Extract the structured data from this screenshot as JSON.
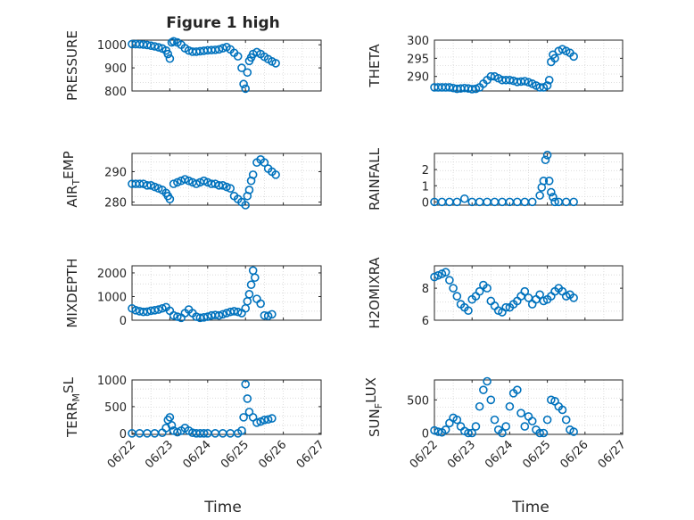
{
  "figure_title": "Figure 1 high",
  "marker_color": "#0072BD",
  "xlabel": "Time",
  "chart_data": [
    {
      "type": "scatter",
      "ylabel": "PRESSURE",
      "ylabel_parts": [
        "PRESSURE"
      ],
      "ylim": [
        800,
        1020
      ],
      "yticks": [
        800,
        900,
        1000
      ],
      "xlim": [
        0,
        5
      ],
      "xticks": [
        "06/22",
        "06/23",
        "06/24",
        "06/25",
        "06/26",
        "06/27"
      ],
      "grid": true,
      "x": [
        0,
        0.1,
        0.2,
        0.3,
        0.4,
        0.5,
        0.6,
        0.7,
        0.8,
        0.9,
        0.95,
        1.0,
        1.05,
        1.1,
        1.2,
        1.3,
        1.4,
        1.5,
        1.6,
        1.7,
        1.8,
        1.9,
        2.0,
        2.1,
        2.2,
        2.3,
        2.4,
        2.5,
        2.6,
        2.7,
        2.8,
        2.9,
        2.95,
        3.0,
        3.05,
        3.1,
        3.15,
        3.2,
        3.3,
        3.4,
        3.5,
        3.6,
        3.7,
        3.8
      ],
      "y": [
        1003,
        1003,
        1002,
        1001,
        999,
        996,
        993,
        989,
        984,
        975,
        960,
        940,
        1010,
        1015,
        1010,
        1000,
        985,
        975,
        970,
        970,
        972,
        974,
        976,
        977,
        978,
        980,
        985,
        990,
        980,
        965,
        950,
        900,
        830,
        810,
        880,
        930,
        945,
        960,
        968,
        960,
        948,
        938,
        928,
        920
      ]
    },
    {
      "type": "scatter",
      "ylabel": "THETA",
      "ylabel_parts": [
        "THETA"
      ],
      "ylim": [
        286,
        300
      ],
      "yticks": [
        290,
        295,
        300
      ],
      "xlim": [
        0,
        5
      ],
      "xticks": [
        "06/22",
        "06/23",
        "06/24",
        "06/25",
        "06/26",
        "06/27"
      ],
      "grid": true,
      "x": [
        0,
        0.1,
        0.2,
        0.3,
        0.4,
        0.5,
        0.6,
        0.7,
        0.8,
        0.9,
        1.0,
        1.1,
        1.2,
        1.3,
        1.4,
        1.5,
        1.6,
        1.7,
        1.8,
        1.9,
        2.0,
        2.1,
        2.2,
        2.3,
        2.4,
        2.5,
        2.6,
        2.7,
        2.8,
        2.9,
        3.0,
        3.05,
        3.1,
        3.15,
        3.2,
        3.3,
        3.4,
        3.5,
        3.6,
        3.7
      ],
      "y": [
        287,
        287,
        287,
        287,
        287,
        286.8,
        286.6,
        286.7,
        286.8,
        286.7,
        286.5,
        286.6,
        287,
        288,
        289,
        290,
        290,
        289.5,
        289,
        289,
        289,
        288.8,
        288.5,
        288.6,
        288.7,
        288.4,
        288,
        287.5,
        287,
        287,
        287.5,
        289,
        294,
        296,
        295,
        297,
        297.5,
        297,
        296.5,
        295.5
      ]
    },
    {
      "type": "scatter",
      "ylabel": "AIR_TEMP",
      "ylabel_parts": [
        "AIR",
        "T",
        "EMP"
      ],
      "ylim": [
        279,
        296
      ],
      "yticks": [
        280,
        290
      ],
      "xlim": [
        0,
        5
      ],
      "xticks": [
        "06/22",
        "06/23",
        "06/24",
        "06/25",
        "06/26",
        "06/27"
      ],
      "grid": true,
      "x": [
        0,
        0.1,
        0.2,
        0.3,
        0.4,
        0.5,
        0.6,
        0.7,
        0.8,
        0.9,
        0.95,
        1.0,
        1.1,
        1.2,
        1.3,
        1.4,
        1.5,
        1.6,
        1.7,
        1.8,
        1.9,
        2.0,
        2.1,
        2.2,
        2.3,
        2.4,
        2.5,
        2.6,
        2.7,
        2.8,
        2.9,
        3.0,
        3.05,
        3.1,
        3.15,
        3.2,
        3.3,
        3.4,
        3.5,
        3.6,
        3.7,
        3.8
      ],
      "y": [
        286,
        286,
        286,
        286,
        285.5,
        285.5,
        285,
        284.5,
        284,
        283,
        282,
        281,
        286,
        286.5,
        287,
        287.5,
        287,
        286.5,
        286,
        286.5,
        287,
        286.5,
        286,
        286,
        285.5,
        285.5,
        285,
        284.5,
        282,
        281,
        280,
        279,
        282,
        284,
        287,
        289,
        293,
        294,
        293,
        291,
        290,
        289
      ]
    },
    {
      "type": "scatter",
      "ylabel": "RAINFALL",
      "ylabel_parts": [
        "RAINFALL"
      ],
      "ylim": [
        -0.2,
        3
      ],
      "yticks": [
        0,
        1,
        2
      ],
      "xlim": [
        0,
        5
      ],
      "xticks": [
        "06/22",
        "06/23",
        "06/24",
        "06/25",
        "06/26",
        "06/27"
      ],
      "grid": true,
      "x": [
        0,
        0.2,
        0.4,
        0.6,
        0.8,
        1.0,
        1.2,
        1.4,
        1.6,
        1.8,
        2.0,
        2.2,
        2.4,
        2.6,
        2.8,
        2.85,
        2.9,
        2.95,
        3.0,
        3.05,
        3.1,
        3.15,
        3.2,
        3.3,
        3.5,
        3.7
      ],
      "y": [
        0,
        0,
        0,
        0,
        0.2,
        0,
        0,
        0,
        0,
        0,
        0,
        0,
        0,
        0,
        0.4,
        0.9,
        1.3,
        2.6,
        2.9,
        1.3,
        0.6,
        0.3,
        0,
        0,
        0,
        0
      ]
    },
    {
      "type": "scatter",
      "ylabel": "MIXDEPTH",
      "ylabel_parts": [
        "MIXDEPTH"
      ],
      "ylim": [
        0,
        2300
      ],
      "yticks": [
        0,
        1000,
        2000
      ],
      "xlim": [
        0,
        5
      ],
      "xticks": [
        "06/22",
        "06/23",
        "06/24",
        "06/25",
        "06/26",
        "06/27"
      ],
      "grid": true,
      "x": [
        0,
        0.1,
        0.2,
        0.3,
        0.4,
        0.5,
        0.6,
        0.7,
        0.8,
        0.9,
        1.0,
        1.1,
        1.2,
        1.3,
        1.4,
        1.5,
        1.6,
        1.7,
        1.8,
        1.9,
        2.0,
        2.1,
        2.2,
        2.3,
        2.4,
        2.5,
        2.6,
        2.7,
        2.8,
        2.9,
        3.0,
        3.05,
        3.1,
        3.15,
        3.2,
        3.25,
        3.3,
        3.4,
        3.5,
        3.6,
        3.7
      ],
      "y": [
        500,
        420,
        380,
        350,
        360,
        400,
        420,
        450,
        500,
        550,
        400,
        200,
        150,
        100,
        300,
        450,
        300,
        150,
        100,
        120,
        150,
        200,
        220,
        200,
        250,
        300,
        350,
        380,
        350,
        300,
        500,
        800,
        1100,
        1500,
        2100,
        1800,
        900,
        700,
        200,
        180,
        250
      ]
    },
    {
      "type": "scatter",
      "ylabel": "H2OMIXRA",
      "ylabel_parts": [
        "H2OMIXRA"
      ],
      "ylim": [
        6,
        9.4
      ],
      "yticks": [
        6,
        8
      ],
      "xlim": [
        0,
        5
      ],
      "xticks": [
        "06/22",
        "06/23",
        "06/24",
        "06/25",
        "06/26",
        "06/27"
      ],
      "grid": true,
      "x": [
        0,
        0.1,
        0.2,
        0.3,
        0.4,
        0.5,
        0.6,
        0.7,
        0.8,
        0.9,
        1.0,
        1.1,
        1.2,
        1.3,
        1.4,
        1.5,
        1.6,
        1.7,
        1.8,
        1.9,
        2.0,
        2.1,
        2.2,
        2.3,
        2.4,
        2.5,
        2.6,
        2.7,
        2.8,
        2.9,
        3.0,
        3.1,
        3.2,
        3.3,
        3.4,
        3.5,
        3.6,
        3.7
      ],
      "y": [
        8.7,
        8.8,
        8.9,
        9.0,
        8.5,
        8.0,
        7.5,
        7.0,
        6.8,
        6.6,
        7.3,
        7.5,
        7.8,
        8.2,
        8.0,
        7.2,
        6.9,
        6.6,
        6.5,
        6.8,
        6.8,
        7.0,
        7.2,
        7.5,
        7.8,
        7.4,
        7.0,
        7.3,
        7.6,
        7.2,
        7.3,
        7.5,
        7.8,
        8.0,
        7.8,
        7.5,
        7.6,
        7.4
      ]
    },
    {
      "type": "scatter",
      "ylabel": "TERR_MSL",
      "ylabel_parts": [
        "TERR",
        "M",
        "SL"
      ],
      "ylim": [
        -20,
        1000
      ],
      "yticks": [
        0,
        500,
        1000
      ],
      "xlim": [
        0,
        5
      ],
      "xticks": [
        "06/22",
        "06/23",
        "06/24",
        "06/25",
        "06/26",
        "06/27"
      ],
      "grid": true,
      "x": [
        0,
        0.2,
        0.4,
        0.6,
        0.8,
        0.9,
        0.95,
        1.0,
        1.05,
        1.1,
        1.2,
        1.3,
        1.4,
        1.5,
        1.6,
        1.7,
        1.8,
        1.9,
        2.0,
        2.2,
        2.4,
        2.6,
        2.8,
        2.9,
        2.95,
        3.0,
        3.05,
        3.1,
        3.2,
        3.3,
        3.4,
        3.5,
        3.6,
        3.7
      ],
      "y": [
        0,
        0,
        0,
        0,
        10,
        100,
        250,
        300,
        150,
        50,
        20,
        50,
        100,
        50,
        10,
        0,
        0,
        0,
        0,
        0,
        0,
        0,
        0,
        50,
        300,
        920,
        650,
        400,
        300,
        200,
        220,
        250,
        260,
        280
      ]
    },
    {
      "type": "scatter",
      "ylabel": "SUN_FLUX",
      "ylabel_parts": [
        "SUN",
        "F",
        "LUX"
      ],
      "ylim": [
        -20,
        800
      ],
      "yticks": [
        0,
        500
      ],
      "xlim": [
        0,
        5
      ],
      "xticks": [
        "06/22",
        "06/23",
        "06/24",
        "06/25",
        "06/26",
        "06/27"
      ],
      "grid": true,
      "x": [
        0,
        0.1,
        0.2,
        0.3,
        0.4,
        0.5,
        0.6,
        0.7,
        0.8,
        0.9,
        1.0,
        1.1,
        1.2,
        1.3,
        1.4,
        1.5,
        1.6,
        1.7,
        1.8,
        1.9,
        2.0,
        2.1,
        2.2,
        2.3,
        2.4,
        2.5,
        2.6,
        2.7,
        2.8,
        2.9,
        3.0,
        3.1,
        3.2,
        3.3,
        3.4,
        3.5,
        3.6,
        3.7
      ],
      "y": [
        40,
        20,
        10,
        50,
        150,
        230,
        200,
        100,
        30,
        0,
        0,
        100,
        400,
        650,
        780,
        500,
        200,
        50,
        0,
        100,
        400,
        600,
        650,
        300,
        100,
        250,
        180,
        50,
        0,
        0,
        200,
        500,
        480,
        400,
        350,
        200,
        50,
        20
      ]
    }
  ]
}
